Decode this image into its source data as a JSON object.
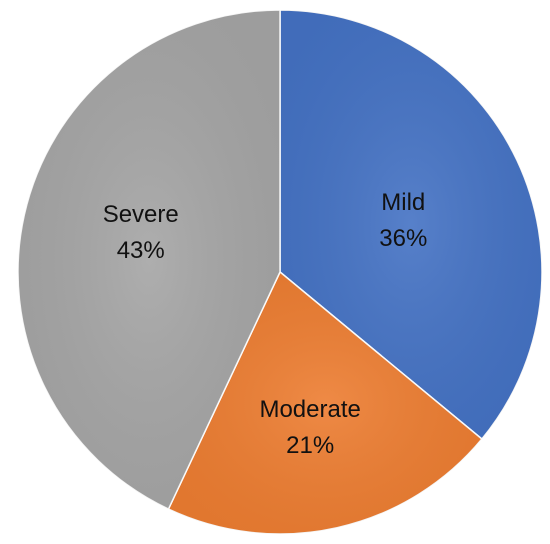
{
  "chart_data": {
    "type": "pie",
    "title": "",
    "legend": "none",
    "slices": [
      {
        "category": "Mild",
        "value": 36,
        "value_label": "36%",
        "color": "#4472C4"
      },
      {
        "category": "Moderate",
        "value": 21,
        "value_label": "21%",
        "color": "#ED7D31"
      },
      {
        "category": "Severe",
        "value": 43,
        "value_label": "43%",
        "color": "#A5A5A5"
      }
    ],
    "start_angle_deg": 0,
    "direction": "clockwise"
  }
}
